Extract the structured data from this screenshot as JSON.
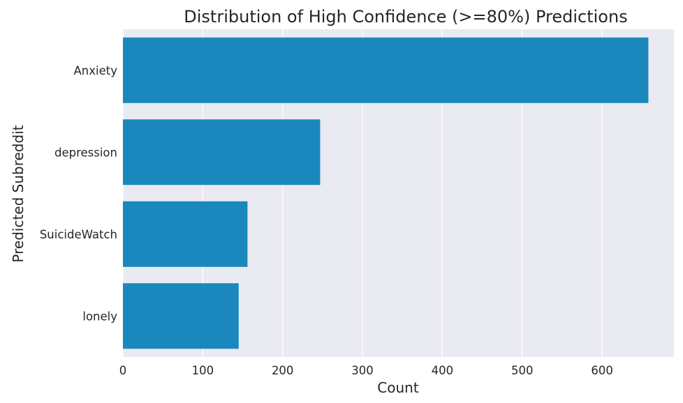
{
  "chart_data": {
    "type": "bar",
    "orientation": "horizontal",
    "title": "Distribution of High Confidence (>=80%) Predictions",
    "xlabel": "Count",
    "ylabel": "Predicted Subreddit",
    "categories": [
      "Anxiety",
      "depression",
      "SuicideWatch",
      "lonely"
    ],
    "values": [
      658,
      247,
      156,
      145
    ],
    "xlim": [
      0,
      690
    ],
    "xticks": [
      0,
      100,
      200,
      300,
      400,
      500,
      600
    ],
    "grid": true,
    "bar_color": "#1a88bd",
    "plot_background": "#eaeaf2"
  }
}
